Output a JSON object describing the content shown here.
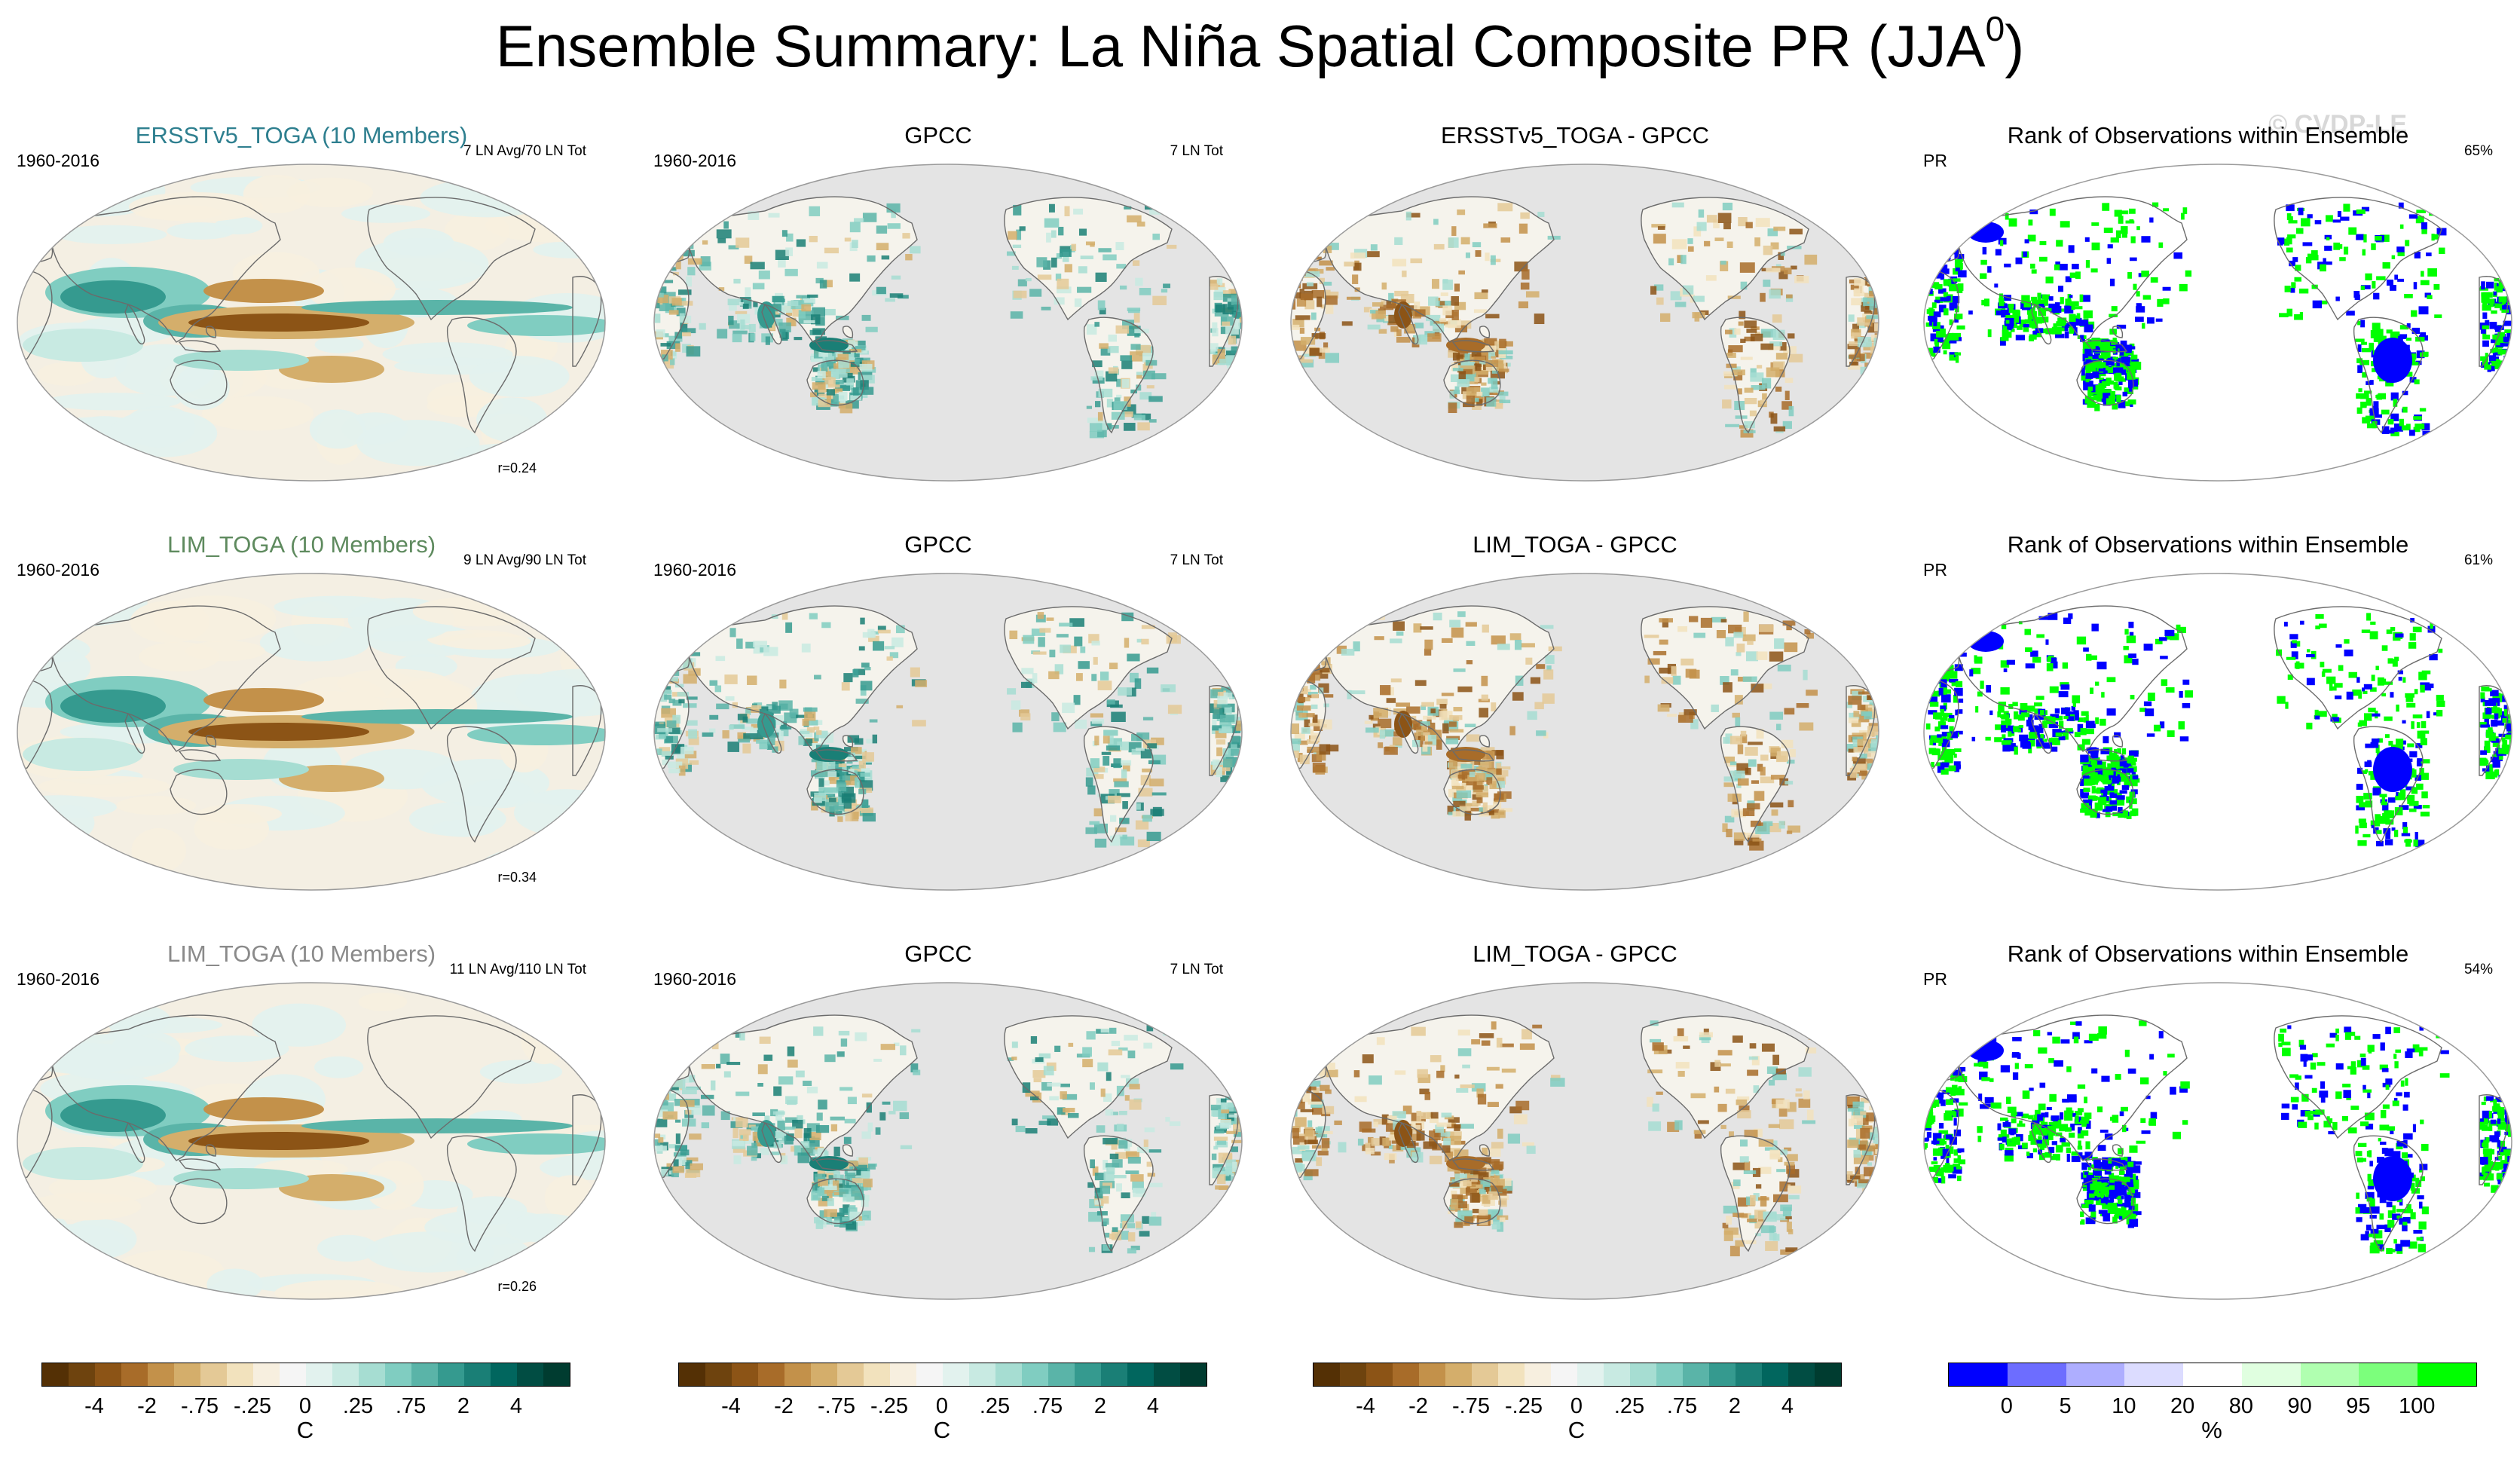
{
  "figure": {
    "title": "Ensemble Summary: La Niña Spatial Composite PR (JJA",
    "title_superscript": "0",
    "title_close": ")",
    "watermark": "© CVDP-LE"
  },
  "rows": [
    {
      "model_title": "ERSSTv5_TOGA (10 Members)",
      "model_title_color": "#2e7f8f",
      "model_period": "1960-2016",
      "model_count": "7 LN Avg/70 LN Tot",
      "correlation": "r=0.24",
      "obs_title": "GPCC",
      "obs_period": "1960-2016",
      "obs_count": "7 LN Tot",
      "diff_title": "ERSSTv5_TOGA - GPCC",
      "rank_title": "Rank of Observations within Ensemble",
      "rank_var": "PR",
      "rank_pct": "65%"
    },
    {
      "model_title": "LIM_TOGA (10 Members)",
      "model_title_color": "#5e8a5e",
      "model_period": "1960-2016",
      "model_count": "9 LN Avg/90 LN Tot",
      "correlation": "r=0.34",
      "obs_title": "GPCC",
      "obs_period": "1960-2016",
      "obs_count": "7 LN Tot",
      "diff_title": "LIM_TOGA - GPCC",
      "rank_title": "Rank of Observations within Ensemble",
      "rank_var": "PR",
      "rank_pct": "61%"
    },
    {
      "model_title": "LIM_TOGA (10 Members)",
      "model_title_color": "#8a8a8a",
      "model_period": "1960-2016",
      "model_count": "11 LN Avg/110 LN Tot",
      "correlation": "r=0.26",
      "obs_title": "GPCC",
      "obs_period": "1960-2016",
      "obs_count": "7 LN Tot",
      "diff_title": "LIM_TOGA - GPCC",
      "rank_title": "Rank of Observations within Ensemble",
      "rank_var": "PR",
      "rank_pct": "54%"
    }
  ],
  "colorbars": {
    "brbg": {
      "colors": [
        "#543005",
        "#6e430e",
        "#8c5416",
        "#a86c29",
        "#c3914a",
        "#d4ae6b",
        "#e4c996",
        "#f2e2bd",
        "#f7efdf",
        "#f5f5f5",
        "#e2f2ee",
        "#c8eae2",
        "#a6ddd2",
        "#80cdc1",
        "#5ab4a8",
        "#359a8f",
        "#1a7f76",
        "#01665e",
        "#014d43",
        "#003c30"
      ],
      "ticks": [
        "-4",
        "-2",
        "-.75",
        "-.25",
        "0",
        ".25",
        ".75",
        "2",
        "4"
      ],
      "unit": "C"
    },
    "rank": {
      "colors": [
        "#0000ff",
        "#6d6dff",
        "#aeaeff",
        "#dcdcff",
        "#ffffff",
        "#e0ffe0",
        "#b0ffb0",
        "#7cff7c",
        "#00ff00"
      ],
      "ticks": [
        "0",
        "5",
        "10",
        "20",
        "80",
        "90",
        "95",
        "100"
      ],
      "unit": "%"
    }
  }
}
